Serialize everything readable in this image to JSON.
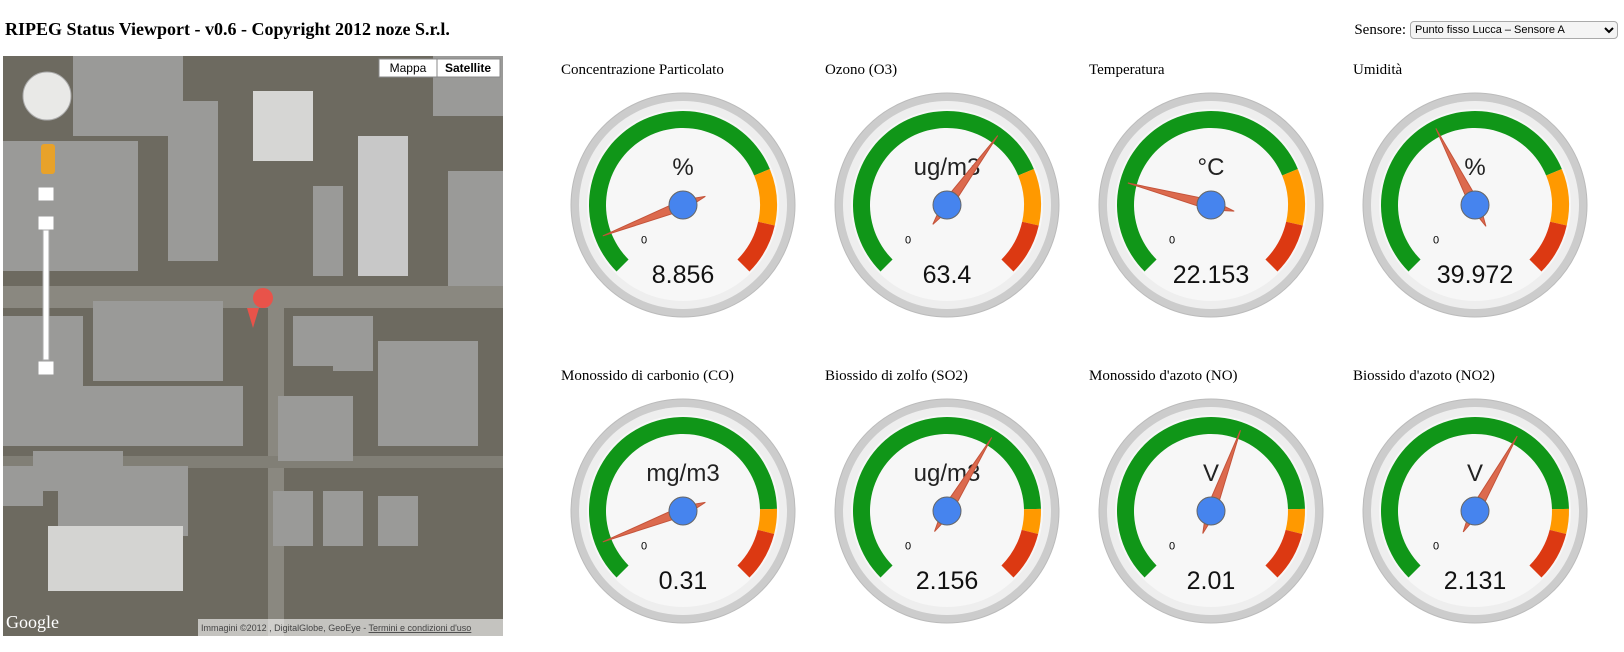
{
  "header": {
    "title": "RIPEG Status Viewport - v0.6 - Copyright 2012 noze S.r.l.",
    "sensor_label": "Sensore:",
    "sensor_selected": "Punto fisso Lucca – Sensore A"
  },
  "map": {
    "type_buttons": [
      "Mappa",
      "Satellite"
    ],
    "logo": "Google",
    "attribution": "Immagini ©2012 , DigitalGlobe, GeoEye - ",
    "terms": "Termini e condizioni d'uso"
  },
  "gauges": [
    {
      "type": "gauge",
      "title": "Concentrazione Particolato",
      "unit": "%",
      "value": 8.856,
      "min": 0,
      "max": 100,
      "bands": [
        {
          "from": 0,
          "to": 75,
          "color": "#109618"
        },
        {
          "from": 75,
          "to": 88,
          "color": "#ff9900"
        },
        {
          "from": 88,
          "to": 100,
          "color": "#dc3912"
        }
      ]
    },
    {
      "type": "gauge",
      "title": "Ozono (O3)",
      "unit": "ug/m3",
      "value": 63.4,
      "min": 0,
      "max": 100,
      "bands": [
        {
          "from": 0,
          "to": 75,
          "color": "#109618"
        },
        {
          "from": 75,
          "to": 88,
          "color": "#ff9900"
        },
        {
          "from": 88,
          "to": 100,
          "color": "#dc3912"
        }
      ]
    },
    {
      "type": "gauge",
      "title": "Temperatura",
      "unit": "°C",
      "value": 22.153,
      "min": 0,
      "max": 100,
      "bands": [
        {
          "from": 0,
          "to": 75,
          "color": "#109618"
        },
        {
          "from": 75,
          "to": 88,
          "color": "#ff9900"
        },
        {
          "from": 88,
          "to": 100,
          "color": "#dc3912"
        }
      ]
    },
    {
      "type": "gauge",
      "title": "Umidità",
      "unit": "%",
      "value": 39.972,
      "min": 0,
      "max": 100,
      "bands": [
        {
          "from": 0,
          "to": 75,
          "color": "#109618"
        },
        {
          "from": 75,
          "to": 88,
          "color": "#ff9900"
        },
        {
          "from": 88,
          "to": 100,
          "color": "#dc3912"
        }
      ]
    },
    {
      "type": "gauge",
      "title": "Monossido di carbonio (CO)",
      "unit": "mg/m3",
      "value": 0.31,
      "min": 0,
      "max": 3.5,
      "bands": [
        {
          "from": 0,
          "to": 2.9,
          "color": "#109618"
        },
        {
          "from": 2.9,
          "to": 3.1,
          "color": "#ff9900"
        },
        {
          "from": 3.1,
          "to": 3.5,
          "color": "#dc3912"
        }
      ]
    },
    {
      "type": "gauge",
      "title": "Biossido di zolfo (SO2)",
      "unit": "ug/m3",
      "value": 2.156,
      "min": 0,
      "max": 3.5,
      "bands": [
        {
          "from": 0,
          "to": 2.9,
          "color": "#109618"
        },
        {
          "from": 2.9,
          "to": 3.1,
          "color": "#ff9900"
        },
        {
          "from": 3.1,
          "to": 3.5,
          "color": "#dc3912"
        }
      ]
    },
    {
      "type": "gauge",
      "title": "Monossido d'azoto (NO)",
      "unit": "V",
      "value": 2.01,
      "min": 0,
      "max": 3.5,
      "bands": [
        {
          "from": 0,
          "to": 2.9,
          "color": "#109618"
        },
        {
          "from": 2.9,
          "to": 3.1,
          "color": "#ff9900"
        },
        {
          "from": 3.1,
          "to": 3.5,
          "color": "#dc3912"
        }
      ]
    },
    {
      "type": "gauge",
      "title": "Biossido d'azoto (NO2)",
      "unit": "V",
      "value": 2.131,
      "min": 0,
      "max": 3.5,
      "bands": [
        {
          "from": 0,
          "to": 2.9,
          "color": "#109618"
        },
        {
          "from": 2.9,
          "to": 3.1,
          "color": "#ff9900"
        },
        {
          "from": 3.1,
          "to": 3.5,
          "color": "#dc3912"
        }
      ]
    }
  ]
}
